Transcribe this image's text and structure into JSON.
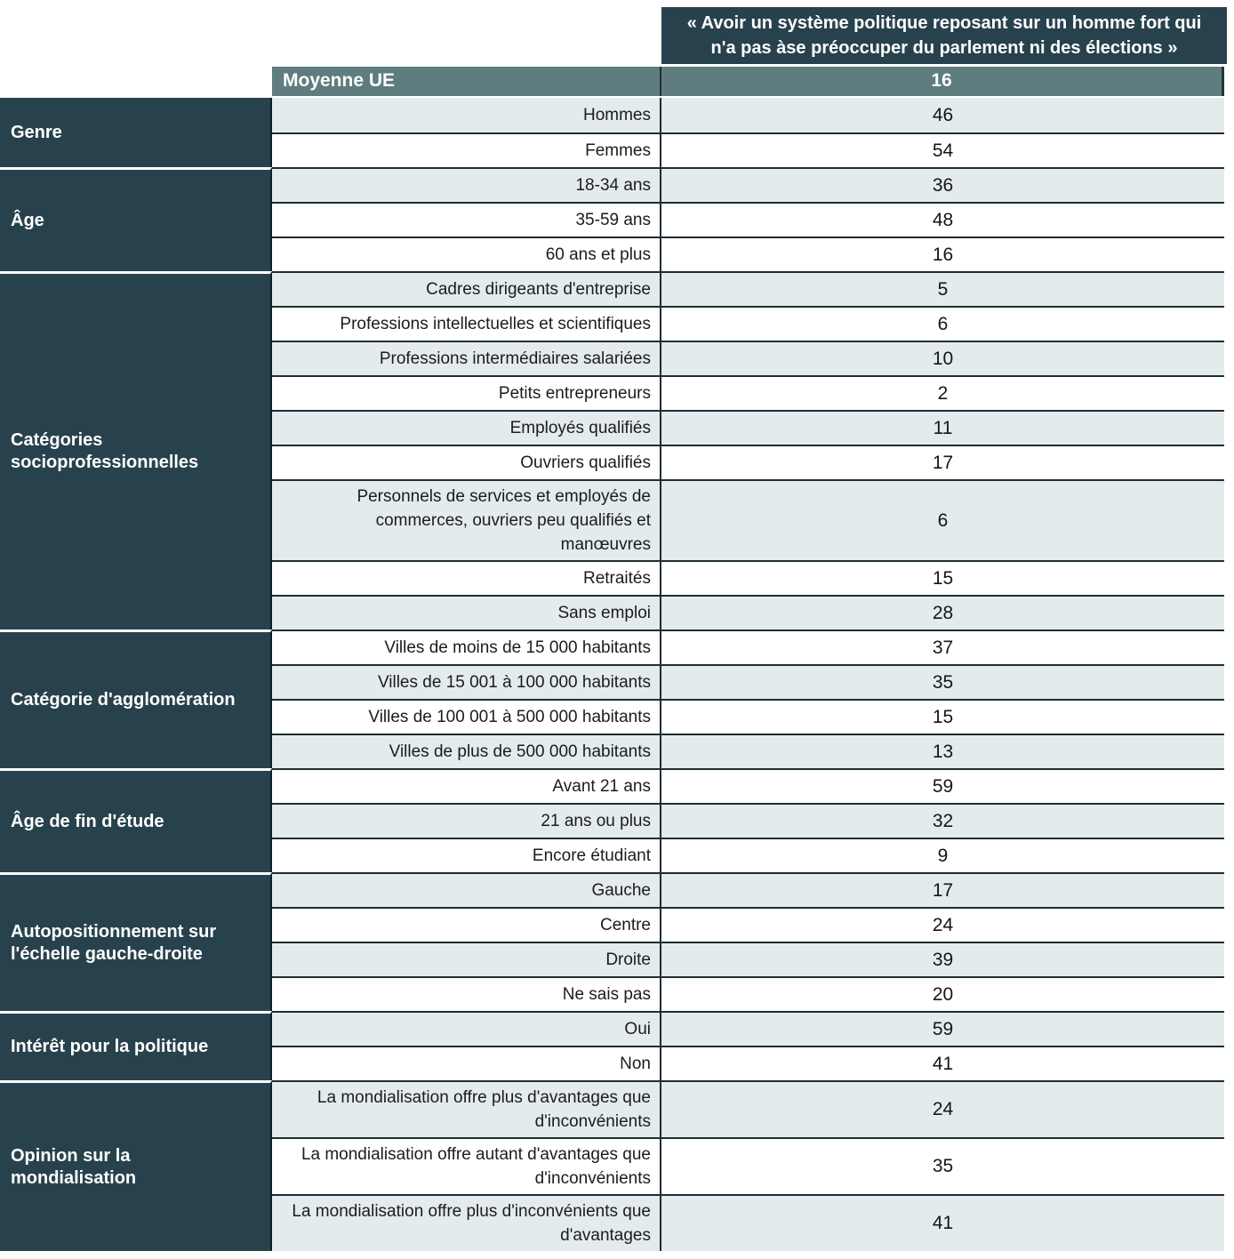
{
  "header": {
    "quote": "« Avoir un système politique reposant sur un homme fort qui n'a pas àse préoccuper du parlement ni des élections »",
    "average_label": "Moyenne UE",
    "average_value": "16"
  },
  "colors": {
    "dark_teal": "#28424d",
    "sage_bar": "#5f7c7e",
    "shaded_row": "#e3ebec",
    "row_border": "#1f2d34",
    "text_dark": "#1c1c1c",
    "text_white": "#ffffff"
  },
  "chart_data": {
    "type": "table",
    "title": "« Avoir un système politique reposant sur un homme fort qui n'a pas àse préoccuper du parlement ni des élections »",
    "average_row": {
      "label": "Moyenne UE",
      "value": 16
    },
    "groups": [
      {
        "label": "Genre",
        "rows": [
          {
            "label": "Hommes",
            "value": 46,
            "shaded": true
          },
          {
            "label": "Femmes",
            "value": 54,
            "shaded": false
          }
        ]
      },
      {
        "label": "Âge",
        "rows": [
          {
            "label": "18-34 ans",
            "value": 36,
            "shaded": true
          },
          {
            "label": "35-59 ans",
            "value": 48,
            "shaded": false
          },
          {
            "label": "60 ans et plus",
            "value": 16,
            "shaded": false
          }
        ]
      },
      {
        "label": "Catégories socioprofessionnelles",
        "rows": [
          {
            "label": "Cadres dirigeants d'entreprise",
            "value": 5,
            "shaded": true
          },
          {
            "label": "Professions intellectuelles et scientifiques",
            "value": 6,
            "shaded": false
          },
          {
            "label": "Professions intermédiaires salariées",
            "value": 10,
            "shaded": true
          },
          {
            "label": "Petits entrepreneurs",
            "value": 2,
            "shaded": false
          },
          {
            "label": "Employés qualifiés",
            "value": 11,
            "shaded": true
          },
          {
            "label": "Ouvriers qualifiés",
            "value": 17,
            "shaded": false
          },
          {
            "label": "Personnels de services et employés de commerces, ouvriers peu qualifiés et manœuvres",
            "value": 6,
            "shaded": true
          },
          {
            "label": "Retraités",
            "value": 15,
            "shaded": false
          },
          {
            "label": "Sans emploi",
            "value": 28,
            "shaded": true
          }
        ]
      },
      {
        "label": "Catégorie d'agglomération",
        "rows": [
          {
            "label": "Villes de moins de 15 000 habitants",
            "value": 37,
            "shaded": false
          },
          {
            "label": "Villes de 15 001 à 100 000 habitants",
            "value": 35,
            "shaded": true
          },
          {
            "label": "Villes de 100 001 à 500 000 habitants",
            "value": 15,
            "shaded": false
          },
          {
            "label": "Villes de plus de 500 000 habitants",
            "value": 13,
            "shaded": true
          }
        ]
      },
      {
        "label": "Âge de fin d'étude",
        "rows": [
          {
            "label": "Avant 21 ans",
            "value": 59,
            "shaded": false
          },
          {
            "label": "21 ans ou plus",
            "value": 32,
            "shaded": true
          },
          {
            "label": "Encore étudiant",
            "value": 9,
            "shaded": false
          }
        ]
      },
      {
        "label": "Autopositionnement sur l'échelle gauche-droite",
        "rows": [
          {
            "label": "Gauche",
            "value": 17,
            "shaded": true
          },
          {
            "label": "Centre",
            "value": 24,
            "shaded": false
          },
          {
            "label": "Droite",
            "value": 39,
            "shaded": true
          },
          {
            "label": "Ne sais pas",
            "value": 20,
            "shaded": false
          }
        ]
      },
      {
        "label": "Intérêt pour la politique",
        "rows": [
          {
            "label": "Oui",
            "value": 59,
            "shaded": true
          },
          {
            "label": "Non",
            "value": 41,
            "shaded": false
          }
        ]
      },
      {
        "label": "Opinion sur la mondialisation",
        "rows": [
          {
            "label": "La mondialisation offre plus d'avantages que d'inconvénients",
            "value": 24,
            "shaded": true
          },
          {
            "label": "La mondialisation offre autant d'avantages que d'inconvénients",
            "value": 35,
            "shaded": false
          },
          {
            "label": "La mondialisation offre plus d'inconvénients que d'avantages",
            "value": 41,
            "shaded": true
          }
        ]
      }
    ]
  }
}
